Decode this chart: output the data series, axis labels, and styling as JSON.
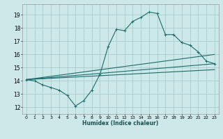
{
  "xlabel": "Humidex (Indice chaleur)",
  "bg_color": "#cce8e8",
  "grid_color": "#aacccc",
  "line_color": "#1a6b6b",
  "xlim": [
    -0.5,
    23.5
  ],
  "ylim": [
    11.5,
    19.8
  ],
  "xticks": [
    0,
    1,
    2,
    3,
    4,
    5,
    6,
    7,
    8,
    9,
    10,
    11,
    12,
    13,
    14,
    15,
    16,
    17,
    18,
    19,
    20,
    21,
    22,
    23
  ],
  "yticks": [
    12,
    13,
    14,
    15,
    16,
    17,
    18,
    19
  ],
  "line1_x": [
    0,
    1,
    2,
    3,
    4,
    5,
    6,
    7,
    8,
    9,
    10,
    11,
    12,
    13,
    14,
    15,
    16,
    17,
    18,
    19,
    20,
    21,
    22,
    23
  ],
  "line1_y": [
    14.1,
    14.0,
    13.7,
    13.5,
    13.3,
    12.9,
    12.1,
    12.5,
    13.3,
    14.5,
    16.6,
    17.9,
    17.8,
    18.5,
    18.8,
    19.2,
    19.1,
    17.5,
    17.5,
    16.9,
    16.7,
    16.2,
    15.5,
    15.3
  ],
  "line2_x": [
    0,
    23
  ],
  "line2_y": [
    14.1,
    15.3
  ],
  "line3_x": [
    0,
    23
  ],
  "line3_y": [
    14.1,
    14.85
  ],
  "line4_x": [
    0,
    23
  ],
  "line4_y": [
    14.1,
    16.0
  ]
}
